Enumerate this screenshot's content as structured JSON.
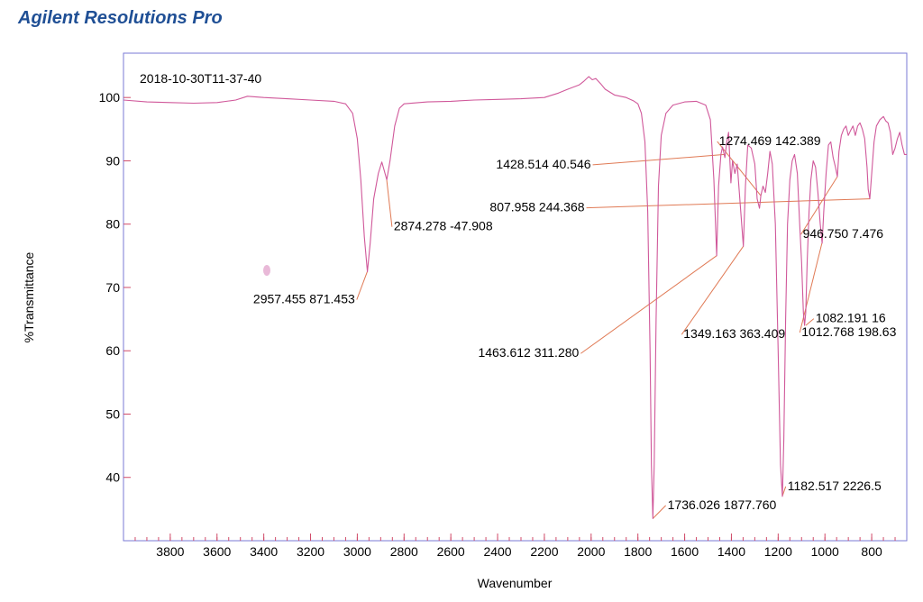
{
  "app": {
    "title": "Agilent Resolutions Pro"
  },
  "colors": {
    "plot_border": "#7a7ad6",
    "spectrum": "#d0589a",
    "leader": "#e07a55",
    "axis": "#d04a68"
  },
  "chart_data": {
    "type": "line",
    "title": "2018-10-30T11-37-40",
    "xlabel": "Wavenumber",
    "ylabel": "%Transmittance",
    "xlim": [
      4000,
      650
    ],
    "ylim": [
      30,
      107
    ],
    "x_reversed": true,
    "grid": false,
    "x_ticks": [
      3800,
      3600,
      3400,
      3200,
      3000,
      2800,
      2600,
      2400,
      2200,
      2000,
      1800,
      1600,
      1400,
      1200,
      1000,
      800
    ],
    "y_ticks": [
      40,
      50,
      60,
      70,
      80,
      90,
      100
    ],
    "series": [
      {
        "points": [
          [
            4000,
            99.6
          ],
          [
            3900,
            99.3
          ],
          [
            3800,
            99.2
          ],
          [
            3700,
            99.1
          ],
          [
            3600,
            99.2
          ],
          [
            3520,
            99.6
          ],
          [
            3470,
            100.2
          ],
          [
            3400,
            100.0
          ],
          [
            3300,
            99.8
          ],
          [
            3200,
            99.6
          ],
          [
            3100,
            99.4
          ],
          [
            3050,
            99.0
          ],
          [
            3020,
            97.5
          ],
          [
            3000,
            93.5
          ],
          [
            2985,
            87.0
          ],
          [
            2970,
            78.0
          ],
          [
            2957,
            72.5
          ],
          [
            2945,
            77.0
          ],
          [
            2930,
            84.0
          ],
          [
            2910,
            88.0
          ],
          [
            2895,
            89.8
          ],
          [
            2885,
            88.5
          ],
          [
            2874,
            87.0
          ],
          [
            2860,
            90.0
          ],
          [
            2840,
            95.5
          ],
          [
            2820,
            98.3
          ],
          [
            2800,
            99.0
          ],
          [
            2700,
            99.3
          ],
          [
            2600,
            99.4
          ],
          [
            2500,
            99.6
          ],
          [
            2400,
            99.7
          ],
          [
            2300,
            99.8
          ],
          [
            2200,
            100.0
          ],
          [
            2140,
            100.7
          ],
          [
            2100,
            101.3
          ],
          [
            2050,
            102.0
          ],
          [
            2030,
            102.6
          ],
          [
            2010,
            103.3
          ],
          [
            1995,
            102.8
          ],
          [
            1980,
            103.0
          ],
          [
            1960,
            102.2
          ],
          [
            1940,
            101.3
          ],
          [
            1900,
            100.4
          ],
          [
            1850,
            100.0
          ],
          [
            1820,
            99.5
          ],
          [
            1800,
            99.0
          ],
          [
            1785,
            97.5
          ],
          [
            1770,
            93.0
          ],
          [
            1758,
            82.0
          ],
          [
            1748,
            60.0
          ],
          [
            1742,
            42.0
          ],
          [
            1736,
            33.5
          ],
          [
            1730,
            42.0
          ],
          [
            1722,
            65.0
          ],
          [
            1712,
            86.0
          ],
          [
            1700,
            94.0
          ],
          [
            1680,
            97.5
          ],
          [
            1650,
            98.8
          ],
          [
            1600,
            99.3
          ],
          [
            1550,
            99.4
          ],
          [
            1510,
            98.8
          ],
          [
            1490,
            96.5
          ],
          [
            1475,
            87.0
          ],
          [
            1463,
            75.0
          ],
          [
            1455,
            86.0
          ],
          [
            1445,
            91.0
          ],
          [
            1438,
            92.2
          ],
          [
            1428,
            90.5
          ],
          [
            1420,
            93.0
          ],
          [
            1412,
            94.5
          ],
          [
            1402,
            86.5
          ],
          [
            1395,
            90.0
          ],
          [
            1385,
            88.0
          ],
          [
            1375,
            89.5
          ],
          [
            1360,
            82.0
          ],
          [
            1349,
            76.5
          ],
          [
            1340,
            86.0
          ],
          [
            1330,
            92.5
          ],
          [
            1315,
            92.0
          ],
          [
            1300,
            89.5
          ],
          [
            1290,
            84.0
          ],
          [
            1280,
            82.5
          ],
          [
            1274,
            84.5
          ],
          [
            1265,
            86.0
          ],
          [
            1255,
            85.0
          ],
          [
            1245,
            88.0
          ],
          [
            1235,
            91.5
          ],
          [
            1225,
            89.5
          ],
          [
            1212,
            80.0
          ],
          [
            1200,
            60.0
          ],
          [
            1190,
            42.0
          ],
          [
            1182,
            37.0
          ],
          [
            1176,
            46.0
          ],
          [
            1168,
            65.0
          ],
          [
            1160,
            80.0
          ],
          [
            1150,
            87.0
          ],
          [
            1140,
            90.0
          ],
          [
            1130,
            91.0
          ],
          [
            1118,
            88.0
          ],
          [
            1108,
            80.0
          ],
          [
            1100,
            74.0
          ],
          [
            1092,
            66.0
          ],
          [
            1087,
            64.0
          ],
          [
            1082,
            66.0
          ],
          [
            1076,
            74.0
          ],
          [
            1068,
            82.0
          ],
          [
            1060,
            87.0
          ],
          [
            1050,
            90.0
          ],
          [
            1040,
            89.0
          ],
          [
            1030,
            85.0
          ],
          [
            1020,
            80.0
          ],
          [
            1012,
            77.0
          ],
          [
            1005,
            82.0
          ],
          [
            995,
            88.0
          ],
          [
            985,
            92.5
          ],
          [
            975,
            93.0
          ],
          [
            965,
            90.5
          ],
          [
            955,
            89.0
          ],
          [
            947,
            87.5
          ],
          [
            940,
            91.5
          ],
          [
            930,
            94.0
          ],
          [
            920,
            95.0
          ],
          [
            910,
            95.5
          ],
          [
            900,
            94.0
          ],
          [
            890,
            94.8
          ],
          [
            880,
            95.5
          ],
          [
            870,
            94.0
          ],
          [
            860,
            95.5
          ],
          [
            850,
            96.0
          ],
          [
            840,
            95.0
          ],
          [
            830,
            93.5
          ],
          [
            820,
            89.0
          ],
          [
            815,
            85.5
          ],
          [
            808,
            84.0
          ],
          [
            800,
            88.0
          ],
          [
            790,
            93.0
          ],
          [
            780,
            95.5
          ],
          [
            765,
            96.5
          ],
          [
            750,
            97.0
          ],
          [
            740,
            96.3
          ],
          [
            730,
            96.0
          ],
          [
            720,
            94.5
          ],
          [
            710,
            91.0
          ],
          [
            700,
            92.0
          ],
          [
            690,
            93.5
          ],
          [
            680,
            94.5
          ],
          [
            670,
            92.5
          ],
          [
            660,
            91.0
          ],
          [
            650,
            91.0
          ]
        ]
      }
    ],
    "annotations": [
      {
        "label": "2957.455  871.453",
        "peak_x": 2957.455,
        "peak_y": 72.5,
        "text_x": 3010,
        "text_y": 67.5,
        "anchor": "end"
      },
      {
        "label": "2874.278  -47.908",
        "peak_x": 2874.278,
        "peak_y": 87.0,
        "text_x": 2844,
        "text_y": 79.0,
        "anchor": "start"
      },
      {
        "label": "1463.612  311.280",
        "peak_x": 1463.612,
        "peak_y": 75.0,
        "text_x": 2052,
        "text_y": 59.0,
        "anchor": "end"
      },
      {
        "label": "1428.514  40.546",
        "peak_x": 1428.514,
        "peak_y": 91.0,
        "text_x": 2001,
        "text_y": 88.8,
        "anchor": "end"
      },
      {
        "label": "807.958  244.368",
        "peak_x": 807.958,
        "peak_y": 84.0,
        "text_x": 2028,
        "text_y": 82.0,
        "anchor": "end"
      },
      {
        "label": "1274.469  142.389",
        "peak_x": 1274.469,
        "peak_y": 84.5,
        "text_x": 1453,
        "text_y": 92.5,
        "anchor": "start"
      },
      {
        "label": "1349.163  363.409",
        "peak_x": 1349.163,
        "peak_y": 76.5,
        "text_x": 1605,
        "text_y": 62.0,
        "anchor": "start"
      },
      {
        "label": "1736.026  1877.760",
        "peak_x": 1736.026,
        "peak_y": 33.5,
        "text_x": 1673,
        "text_y": 35.0,
        "anchor": "start"
      },
      {
        "label": "1182.517  2226.5",
        "peak_x": 1182.517,
        "peak_y": 37.0,
        "text_x": 1160,
        "text_y": 38.0,
        "anchor": "start"
      },
      {
        "label": "1082.191  16",
        "peak_x": 1082.191,
        "peak_y": 64.0,
        "text_x": 1040,
        "text_y": 64.5,
        "anchor": "start"
      },
      {
        "label": "1012.768  198.63",
        "peak_x": 1012.768,
        "peak_y": 77.0,
        "text_x": 1100,
        "text_y": 62.3,
        "anchor": "start"
      },
      {
        "label": "946.750  7.476",
        "peak_x": 946.75,
        "peak_y": 87.5,
        "text_x": 1095,
        "text_y": 77.8,
        "anchor": "start"
      }
    ]
  }
}
